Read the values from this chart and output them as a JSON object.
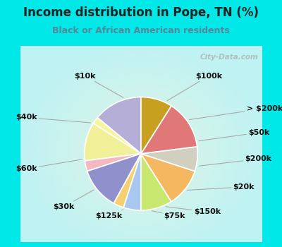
{
  "title": "Income distribution in Pope, TN (%)",
  "subtitle": "Black or African American residents",
  "watermark": "City-Data.com",
  "labels": [
    "$100k",
    "> $200k",
    "$50k",
    "$200k",
    "$20k",
    "$150k",
    "$75k",
    "$125k",
    "$30k",
    "$60k",
    "$40k",
    "$10k"
  ],
  "values": [
    14,
    2,
    11,
    3,
    12,
    3,
    5,
    9,
    11,
    7,
    14,
    9
  ],
  "colors": [
    "#b5aed6",
    "#f5f5a0",
    "#f0f098",
    "#f5b8c0",
    "#9090cc",
    "#f5d070",
    "#a8c8f0",
    "#c8e870",
    "#f5b860",
    "#d0cfc0",
    "#e07878",
    "#c8a020"
  ],
  "bg_outer": "#00e8e8",
  "title_color": "#222222",
  "subtitle_color": "#558899",
  "label_color": "#111111",
  "label_fontsize": 8.0,
  "title_fontsize": 12,
  "subtitle_fontsize": 9
}
